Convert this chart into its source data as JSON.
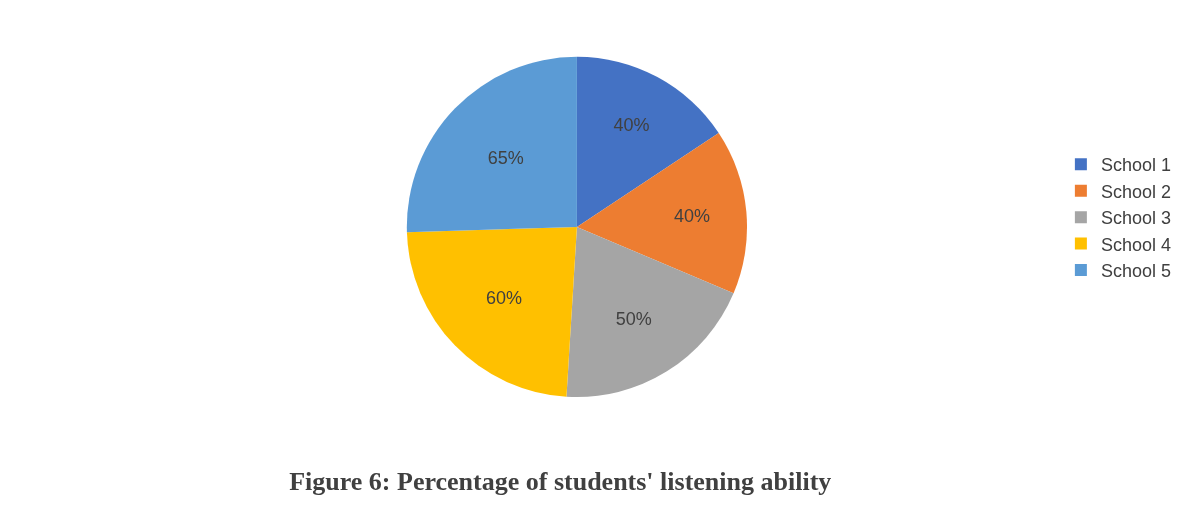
{
  "chart_data": {
    "type": "pie",
    "title": "Figure 6: Percentage of students' listening ability",
    "categories": [
      "School 1",
      "School 2",
      "School 3",
      "School 4",
      "School 5"
    ],
    "values": [
      40,
      40,
      50,
      60,
      65
    ],
    "value_labels": [
      "40%",
      "40%",
      "50%",
      "60%",
      "65%"
    ],
    "colors": [
      "#4472c4",
      "#ed7d31",
      "#a5a5a5",
      "#ffc000",
      "#5b9bd5"
    ],
    "legend": "right"
  }
}
